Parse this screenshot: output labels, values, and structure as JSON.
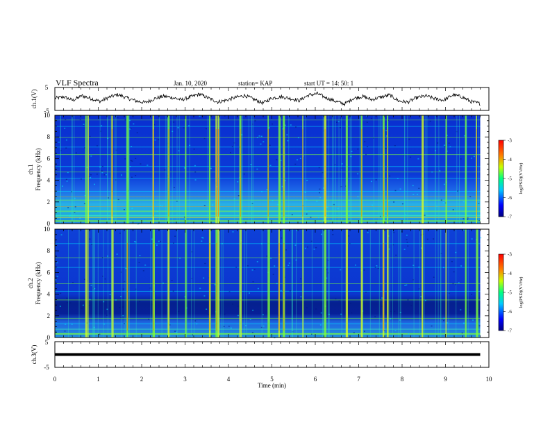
{
  "header": {
    "title": "VLF Spectra",
    "date": "Jan. 10, 2020",
    "station": "station= KAP",
    "start": "start  UT =   14: 50: 1"
  },
  "chart_data": [
    {
      "type": "line",
      "panel": "ch1-waveform",
      "ylabel": "ch.1(V)",
      "ylim": [
        -5,
        5
      ],
      "yticks": [
        "5",
        "-5"
      ],
      "xlim": [
        0,
        10
      ],
      "description_series": [
        0.3,
        0.9,
        -0.6,
        1.4,
        0.2,
        -1.1,
        0.8,
        1.9,
        0.4,
        -0.9,
        -1.6,
        0.1,
        1.2,
        0.6,
        -0.4,
        0.9,
        2.1,
        0.3,
        -1.3,
        -0.5,
        0.7,
        1.5,
        -0.2,
        -1.8,
        0.4,
        1.0,
        0.2,
        -0.7,
        1.6,
        2.3,
        0.5,
        -1.0,
        -2.2,
        0.3,
        1.1,
        -0.3,
        0.8,
        1.7,
        -0.9,
        -1.4,
        0.6,
        1.3,
        0.1,
        -0.5,
        1.8,
        0.9,
        -1.2,
        -2.0
      ]
    },
    {
      "type": "heatmap",
      "panel": "ch1-spectrogram",
      "ylabel": "ch.1 Frequency (kHz)",
      "ylim": [
        0,
        10
      ],
      "yticks": [
        "0",
        "2",
        "4",
        "6",
        "8",
        "10"
      ],
      "xlim": [
        0,
        10
      ],
      "colorbar": {
        "label": "log(PSD)(V²/Hz)",
        "range": [
          -7,
          -3
        ],
        "ticks": [
          "-3",
          "-4",
          "-5",
          "-6",
          "-7"
        ]
      },
      "impulsive_events_min": [
        0.7,
        0.75,
        1.3,
        1.65,
        2.25,
        2.6,
        3.0,
        3.55,
        3.7,
        3.75,
        4.25,
        4.9,
        5.15,
        5.25,
        5.7,
        6.2,
        6.7,
        7.05,
        7.55,
        7.65,
        8.45,
        9.0,
        9.45,
        9.7
      ]
    },
    {
      "type": "heatmap",
      "panel": "ch2-spectrogram",
      "ylabel": "ch.2 Frequency (kHz)",
      "ylim": [
        0,
        10
      ],
      "yticks": [
        "0",
        "2",
        "4",
        "6",
        "8",
        "10"
      ],
      "xlim": [
        0,
        10
      ],
      "colorbar": {
        "label": "log(PSD)(V²/Hz)",
        "range": [
          -7,
          -3
        ],
        "ticks": [
          "-3",
          "-4",
          "-5",
          "-6",
          "-7"
        ]
      },
      "impulsive_events_min": [
        0.7,
        0.75,
        1.3,
        1.65,
        2.25,
        2.6,
        3.0,
        3.55,
        3.7,
        3.75,
        4.25,
        4.9,
        5.15,
        5.25,
        5.7,
        6.2,
        6.7,
        7.05,
        7.55,
        7.65,
        8.45,
        9.0,
        9.45,
        9.7
      ]
    },
    {
      "type": "line",
      "panel": "ch3-waveform",
      "ylabel": "ch.3(V)",
      "ylim": [
        -5,
        5
      ],
      "yticks": [
        "5",
        "-5"
      ],
      "xlim": [
        0,
        10
      ],
      "constant_value": 0
    }
  ],
  "x_axis": {
    "label": "Time (min)",
    "ticks": [
      "0",
      "1",
      "2",
      "3",
      "4",
      "5",
      "6",
      "7",
      "8",
      "9",
      "10"
    ],
    "data_end_min": 9.8
  }
}
